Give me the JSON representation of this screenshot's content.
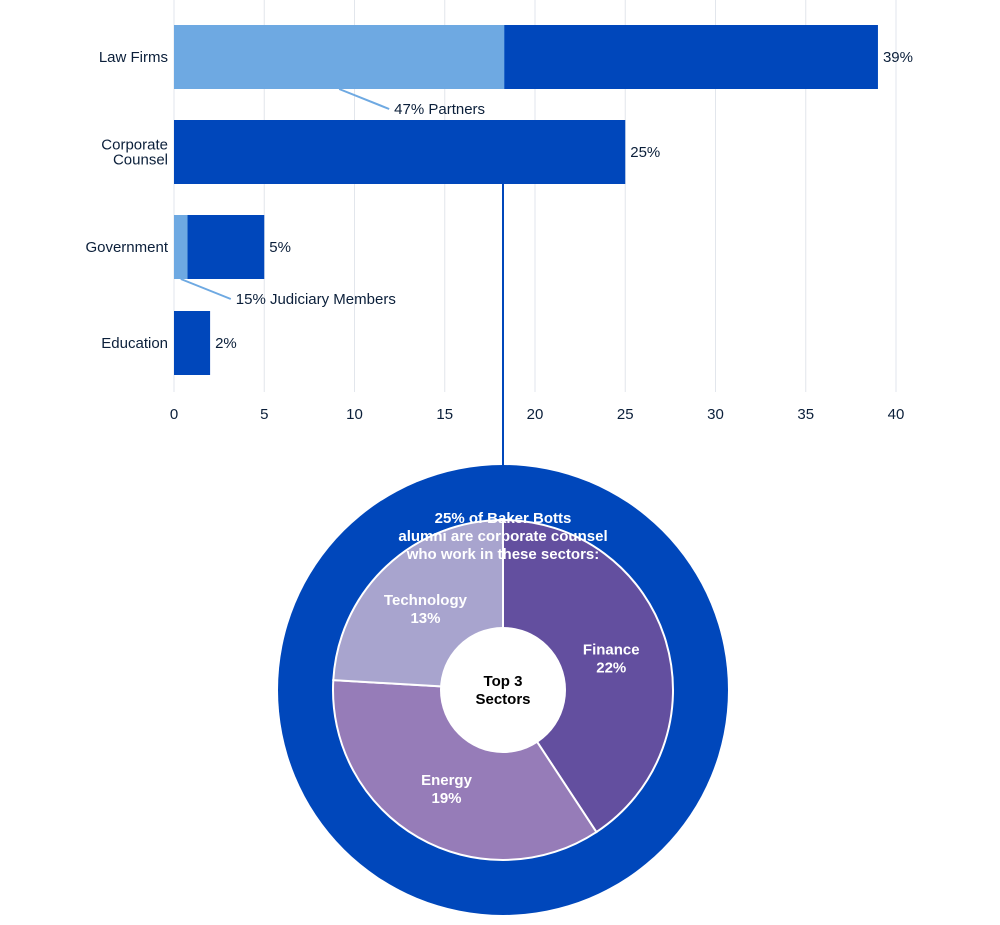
{
  "colors": {
    "bar_dark": "#0047bb",
    "bar_light": "#6ea9e2",
    "grid": "#e2e6ec",
    "text": "#0b1f3a",
    "donut_outer": "#0047bb",
    "slice_finance": "#634f9f",
    "slice_energy": "#967cb8",
    "slice_technology": "#a8a4ce",
    "center": "#ffffff"
  },
  "chart_data": [
    {
      "type": "bar",
      "orientation": "horizontal",
      "categories": [
        "Law Firms",
        "Corporate Counsel",
        "Government",
        "Education"
      ],
      "category_labels": [
        [
          "Law Firms"
        ],
        [
          "Corporate",
          "Counsel"
        ],
        [
          "Government"
        ],
        [
          "Education"
        ]
      ],
      "values": [
        39,
        25,
        5,
        2
      ],
      "value_labels": [
        "39%",
        "25%",
        "5%",
        "2%"
      ],
      "highlight_segments": [
        {
          "category": "Law Firms",
          "value": 18.3,
          "annotation": "47% Partners"
        },
        {
          "category": "Government",
          "value": 0.75,
          "annotation": "15% Judiciary Members"
        }
      ],
      "xlim": [
        0,
        40
      ],
      "xticks": [
        0,
        5,
        10,
        15,
        20,
        25,
        30,
        35,
        40
      ],
      "grid": true,
      "title": "",
      "xlabel": "",
      "ylabel": ""
    },
    {
      "type": "pie",
      "donut": true,
      "title_lines": [
        "25% of Baker Botts",
        "alumni are corporate counsel",
        "who work in these sectors:"
      ],
      "center_lines": [
        "Top 3",
        "Sectors"
      ],
      "slices": [
        {
          "name": "Finance",
          "value": 22,
          "label": "22%"
        },
        {
          "name": "Energy",
          "value": 19,
          "label": "19%"
        },
        {
          "name": "Technology",
          "value": 13,
          "label": "13%"
        }
      ]
    }
  ]
}
